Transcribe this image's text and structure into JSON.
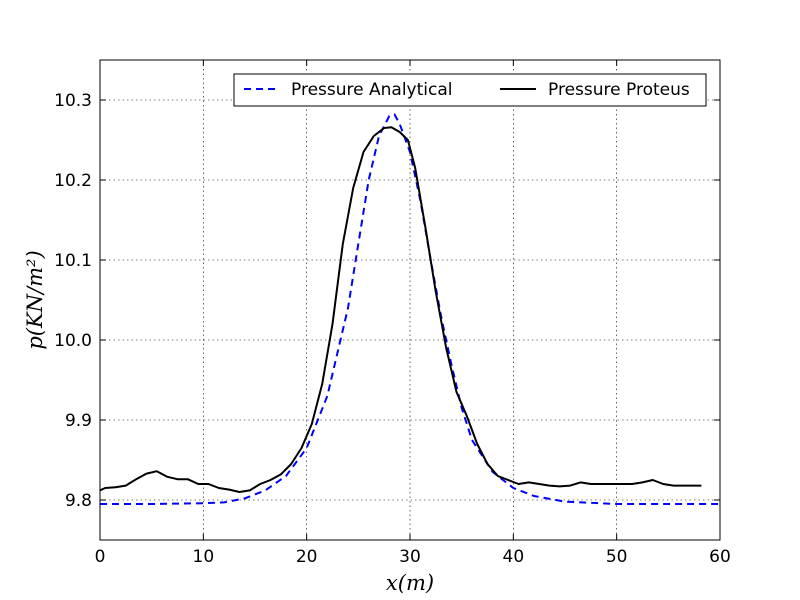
{
  "chart_data": {
    "type": "line",
    "title": "",
    "xlabel": "x(m)",
    "ylabel": "p(KN/m²)",
    "xlim": [
      0,
      60
    ],
    "ylim": [
      9.75,
      10.35
    ],
    "xticks": [
      0,
      10,
      20,
      30,
      40,
      50,
      60
    ],
    "xtick_labels": [
      "0",
      "10",
      "20",
      "30",
      "40",
      "50",
      "60"
    ],
    "yticks": [
      9.8,
      9.9,
      10.0,
      10.1,
      10.2,
      10.3
    ],
    "ytick_labels": [
      "9.8",
      "9.9",
      "10.0",
      "10.1",
      "10.2",
      "10.3"
    ],
    "grid": true,
    "legend_position": "top-right",
    "series": [
      {
        "name": "Pressure Analytical",
        "color": "#0000ff",
        "style": "dashed",
        "x": [
          0,
          5,
          10,
          12,
          14,
          16,
          18,
          20,
          22,
          24,
          25,
          26,
          27,
          28,
          28.5,
          29,
          30,
          31,
          32,
          33,
          34,
          35,
          36,
          38,
          40,
          42,
          45,
          50,
          55,
          60
        ],
        "y": [
          9.795,
          9.795,
          9.796,
          9.797,
          9.802,
          9.812,
          9.83,
          9.865,
          9.93,
          10.04,
          10.12,
          10.2,
          10.255,
          10.28,
          10.282,
          10.27,
          10.235,
          10.175,
          10.1,
          10.03,
          9.97,
          9.915,
          9.875,
          9.835,
          9.815,
          9.805,
          9.798,
          9.795,
          9.795,
          9.795
        ]
      },
      {
        "name": "Pressure Proteus",
        "color": "#000000",
        "style": "solid",
        "x": [
          0,
          0.5,
          1.5,
          2.5,
          3.5,
          4.5,
          5.5,
          6.5,
          7.5,
          8.5,
          9.5,
          10.5,
          11.5,
          12.5,
          13.5,
          14.5,
          15.5,
          16.5,
          17.5,
          18.5,
          19.5,
          20.5,
          21.5,
          22.5,
          23.5,
          24.5,
          25.5,
          26.5,
          27.5,
          28.2,
          29,
          29.8,
          30.5,
          31.5,
          32.5,
          33.5,
          34.5,
          35.5,
          36.5,
          37.5,
          38.5,
          39.5,
          40.5,
          41.5,
          42.5,
          43.5,
          44.5,
          45.5,
          46.5,
          47.5,
          48.5,
          49.5,
          50.5,
          51.5,
          52.5,
          53.5,
          54.5,
          55.5,
          56.5,
          57.5,
          58.2
        ],
        "y": [
          9.812,
          9.815,
          9.816,
          9.818,
          9.826,
          9.833,
          9.836,
          9.829,
          9.826,
          9.826,
          9.82,
          9.82,
          9.815,
          9.813,
          9.81,
          9.812,
          9.82,
          9.825,
          9.832,
          9.845,
          9.865,
          9.895,
          9.945,
          10.02,
          10.12,
          10.19,
          10.235,
          10.255,
          10.265,
          10.266,
          10.26,
          10.25,
          10.215,
          10.14,
          10.06,
          9.99,
          9.935,
          9.905,
          9.87,
          9.845,
          9.83,
          9.825,
          9.82,
          9.822,
          9.82,
          9.818,
          9.817,
          9.818,
          9.822,
          9.82,
          9.82,
          9.82,
          9.82,
          9.82,
          9.822,
          9.825,
          9.82,
          9.818,
          9.818,
          9.818,
          9.818
        ]
      }
    ]
  }
}
